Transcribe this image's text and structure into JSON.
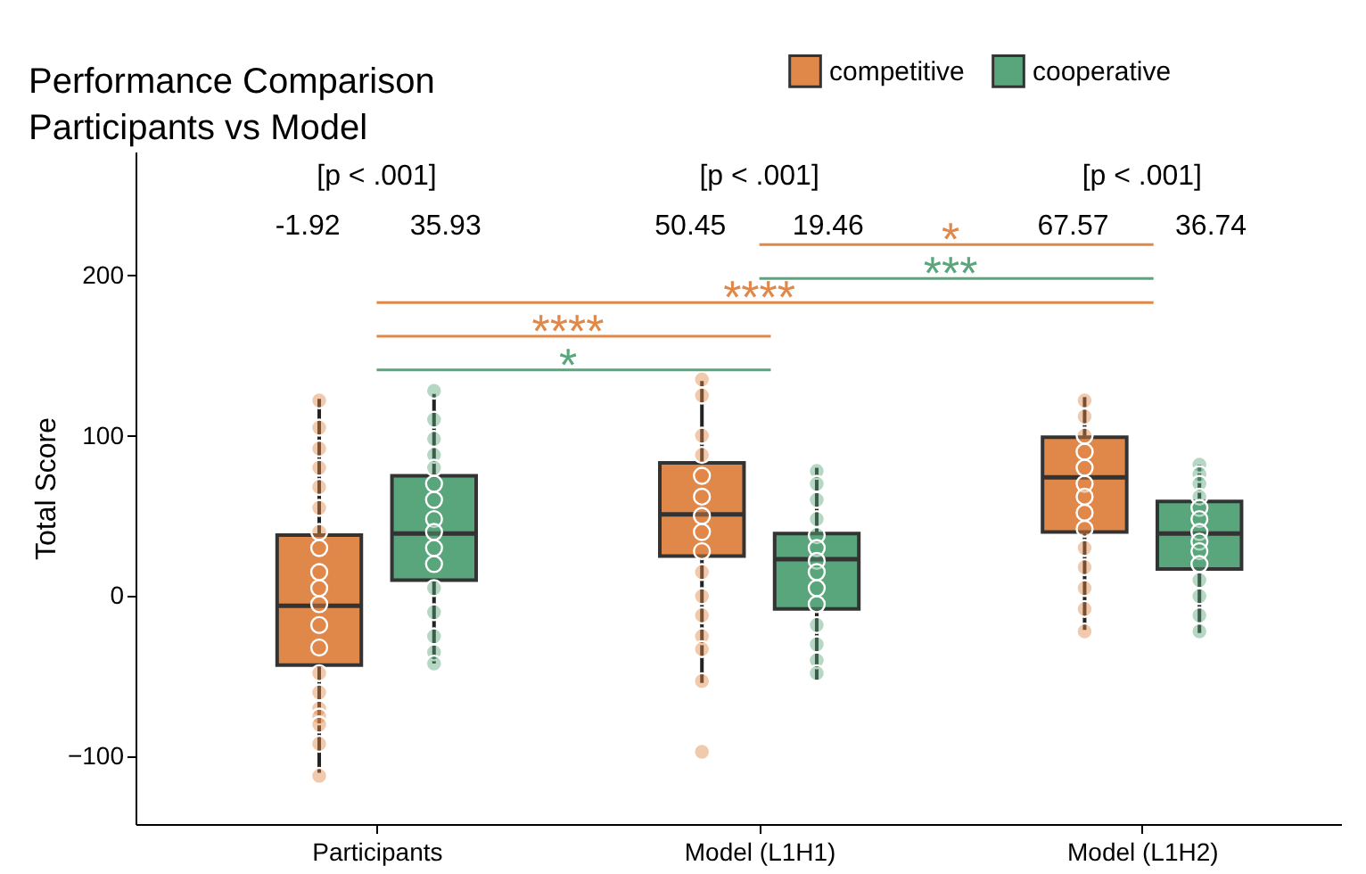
{
  "chart_data": {
    "type": "box",
    "title": "Performance Comparison",
    "subtitle": "Participants vs Model",
    "ylabel": "Total Score",
    "categories": [
      "Participants",
      "Model (L1H1)",
      "Model (L1H2)"
    ],
    "ylim": [
      -142,
      277
    ],
    "yticks": [
      -100,
      0,
      100,
      200
    ],
    "legend": "top right",
    "grid": false,
    "series": [
      {
        "name": "competitive",
        "color": "#e0884a",
        "boxes": [
          {
            "low": -110,
            "q1": -43,
            "median": -6,
            "q3": 38,
            "high": 123
          },
          {
            "low": -54,
            "q1": 25,
            "median": 51,
            "q3": 83,
            "high": 134,
            "outliers": [
              -97
            ]
          },
          {
            "low": -21,
            "q1": 40,
            "median": 74,
            "q3": 99,
            "high": 124
          }
        ]
      },
      {
        "name": "cooperative",
        "color": "#5aa67c",
        "boxes": [
          {
            "low": -42,
            "q1": 10,
            "median": 39,
            "q3": 75,
            "high": 126
          },
          {
            "low": -52,
            "q1": -8,
            "median": 23,
            "q3": 39,
            "high": 80
          },
          {
            "low": -23,
            "q1": 17,
            "median": 39,
            "q3": 59,
            "high": 82
          }
        ]
      },
      {
        "type": "scatter",
        "color": "#e0884a",
        "x": [
          "Participants",
          "Participants",
          "Participants",
          "Participants",
          "Participants",
          "Participants",
          "Participants",
          "Participants",
          "Participants",
          "Participants",
          "Participants",
          "Participants",
          "Participants",
          "Participants",
          "Participants",
          "Participants",
          "Participants",
          "Participants",
          "Participants",
          "Participants",
          "Model (L1H1)",
          "Model (L1H1)",
          "Model (L1H1)",
          "Model (L1H1)",
          "Model (L1H1)",
          "Model (L1H1)",
          "Model (L1H1)",
          "Model (L1H1)",
          "Model (L1H1)",
          "Model (L1H1)",
          "Model (L1H1)",
          "Model (L1H1)",
          "Model (L1H1)",
          "Model (L1H1)",
          "Model (L1H1)",
          "Model (L1H2)",
          "Model (L1H2)",
          "Model (L1H2)",
          "Model (L1H2)",
          "Model (L1H2)",
          "Model (L1H2)",
          "Model (L1H2)",
          "Model (L1H2)",
          "Model (L1H2)",
          "Model (L1H2)",
          "Model (L1H2)",
          "Model (L1H2)",
          "Model (L1H2)",
          "Model (L1H2)"
        ],
        "values": [
          122,
          105,
          92,
          80,
          68,
          55,
          40,
          30,
          15,
          5,
          -5,
          -18,
          -32,
          -48,
          -60,
          -70,
          -75,
          -80,
          -92,
          -112,
          135,
          125,
          100,
          88,
          75,
          62,
          50,
          40,
          28,
          15,
          0,
          -12,
          -25,
          -33,
          -53,
          122,
          112,
          100,
          90,
          80,
          70,
          62,
          52,
          42,
          30,
          18,
          5,
          -8,
          -22
        ]
      },
      {
        "type": "scatter",
        "color": "#5aa67c",
        "x": [
          "Participants",
          "Participants",
          "Participants",
          "Participants",
          "Participants",
          "Participants",
          "Participants",
          "Participants",
          "Participants",
          "Participants",
          "Participants",
          "Participants",
          "Participants",
          "Participants",
          "Participants",
          "Participants",
          "Model (L1H1)",
          "Model (L1H1)",
          "Model (L1H1)",
          "Model (L1H1)",
          "Model (L1H1)",
          "Model (L1H1)",
          "Model (L1H1)",
          "Model (L1H1)",
          "Model (L1H1)",
          "Model (L1H1)",
          "Model (L1H1)",
          "Model (L1H1)",
          "Model (L1H1)",
          "Model (L1H1)",
          "Model (L1H2)",
          "Model (L1H2)",
          "Model (L1H2)",
          "Model (L1H2)",
          "Model (L1H2)",
          "Model (L1H2)",
          "Model (L1H2)",
          "Model (L1H2)",
          "Model (L1H2)",
          "Model (L1H2)",
          "Model (L1H2)",
          "Model (L1H2)",
          "Model (L1H2)",
          "Model (L1H2)"
        ],
        "values": [
          128,
          110,
          98,
          88,
          80,
          70,
          60,
          48,
          40,
          30,
          20,
          5,
          -10,
          -25,
          -35,
          -42,
          78,
          70,
          60,
          48,
          38,
          30,
          22,
          15,
          5,
          -5,
          -18,
          -30,
          -40,
          -48,
          82,
          76,
          70,
          62,
          55,
          48,
          40,
          34,
          28,
          20,
          10,
          0,
          -12,
          -22
        ]
      }
    ],
    "annotations": [
      "[p < .001]",
      "-1.92",
      "35.93",
      "[p < .001]",
      "50.45",
      "19.46",
      "[p < .001]",
      "67.57",
      "36.74",
      "*",
      "***",
      "****",
      "****",
      "*"
    ]
  }
}
